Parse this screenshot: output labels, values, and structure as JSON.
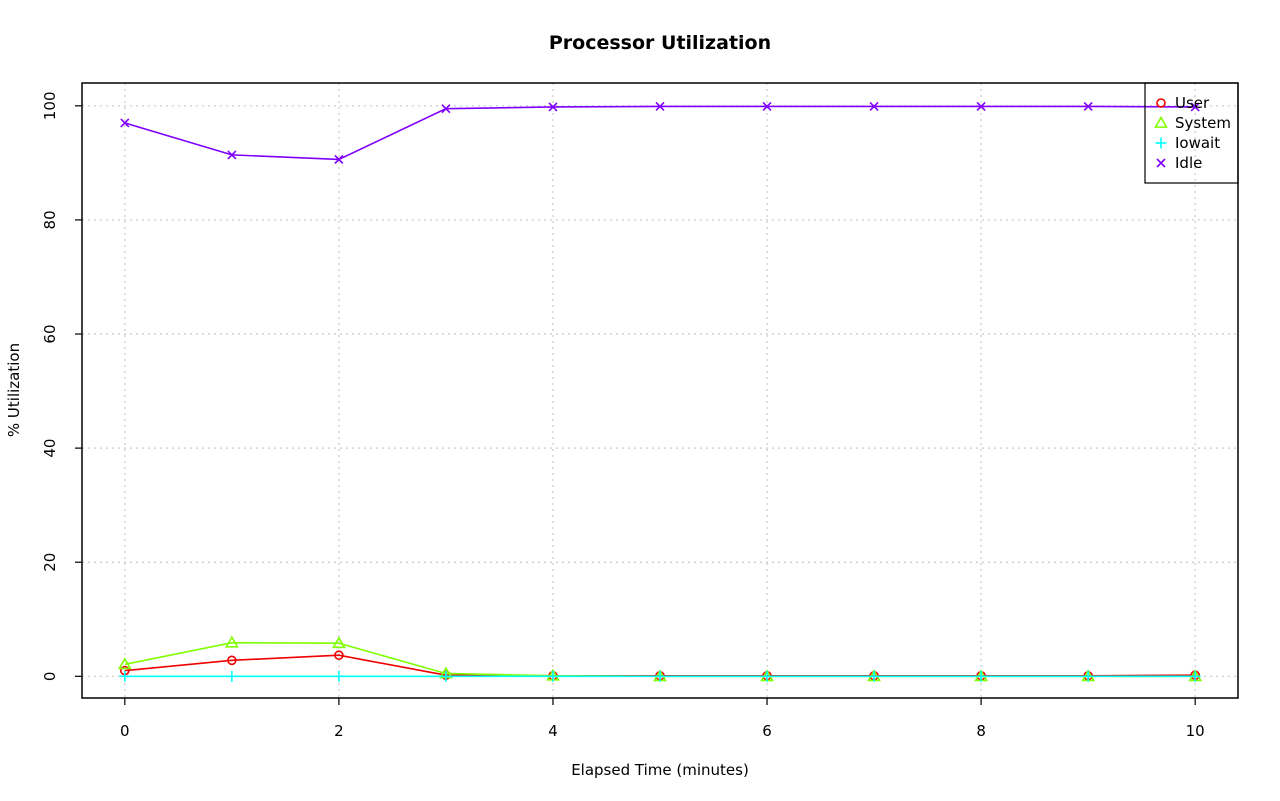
{
  "chart_data": {
    "type": "line",
    "title": "Processor Utilization",
    "xlabel": "Elapsed Time (minutes)",
    "ylabel": "% Utilization",
    "x": [
      0,
      1,
      2,
      3,
      4,
      5,
      6,
      7,
      8,
      9,
      10
    ],
    "xlim": [
      -0.4,
      10.4
    ],
    "ylim": [
      -3.8,
      104
    ],
    "xticks": [
      0,
      2,
      4,
      6,
      8,
      10
    ],
    "yticks": [
      0,
      20,
      40,
      60,
      80,
      100
    ],
    "grid": true,
    "legend_position": "top-right",
    "series": [
      {
        "name": "User",
        "color": "#ee0000",
        "marker": "circle",
        "values": [
          1.0,
          2.8,
          3.7,
          0.2,
          0.1,
          0.1,
          0.1,
          0.1,
          0.1,
          0.1,
          0.2
        ]
      },
      {
        "name": "System",
        "color": "#80ff00",
        "marker": "triangle",
        "values": [
          2.1,
          5.9,
          5.8,
          0.5,
          0.1,
          0.0,
          0.0,
          0.0,
          0.0,
          0.0,
          0.0
        ]
      },
      {
        "name": "Iowait",
        "color": "#00ffff",
        "marker": "plus",
        "values": [
          0.0,
          0.0,
          0.0,
          0.0,
          0.0,
          0.0,
          0.0,
          0.0,
          0.0,
          0.0,
          0.0
        ]
      },
      {
        "name": "Idle",
        "color": "#8000ff",
        "marker": "cross",
        "values": [
          97.0,
          91.4,
          90.6,
          99.5,
          99.8,
          99.9,
          99.9,
          99.9,
          99.9,
          99.9,
          99.8
        ]
      }
    ]
  }
}
